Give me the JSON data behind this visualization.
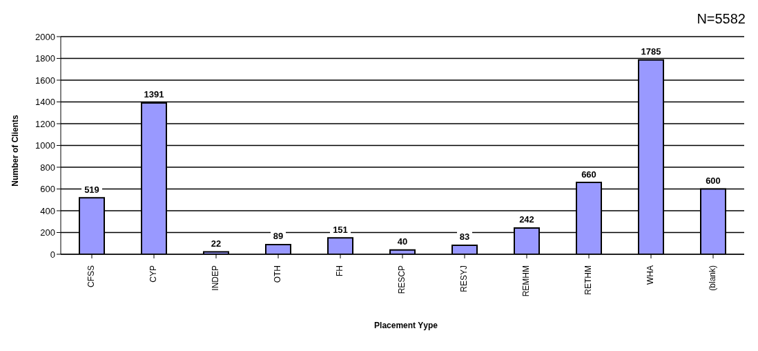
{
  "chart_data": {
    "type": "bar",
    "xlabel": "Placement Yype",
    "ylabel": "Number of Clients",
    "annotations": [
      "N=5582"
    ],
    "categories": [
      "CFSS",
      "CYP",
      "INDEP",
      "OTH",
      "FH",
      "RESCP",
      "RESYJ",
      "REMHM",
      "RETHM",
      "WHA",
      "(blank)"
    ],
    "values": [
      519,
      1391,
      22,
      89,
      151,
      40,
      83,
      242,
      660,
      1785,
      600
    ],
    "color": "#9999ff",
    "ylim": [
      0,
      2000
    ],
    "yticks": [
      0,
      200,
      400,
      600,
      800,
      1000,
      1200,
      1400,
      1600,
      1800,
      2000
    ],
    "grid": "y",
    "data_labels": true
  }
}
